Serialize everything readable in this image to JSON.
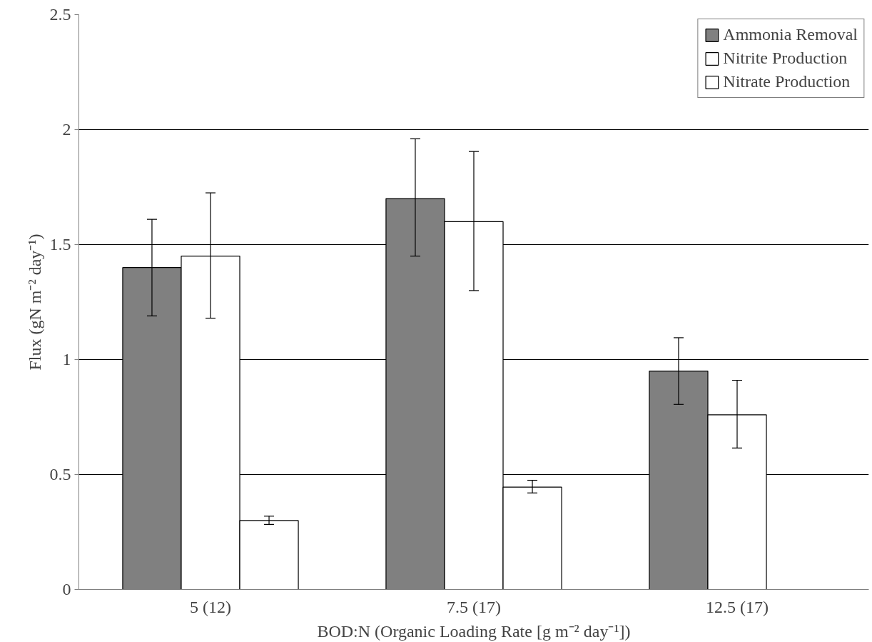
{
  "chart_data": {
    "type": "bar",
    "categories": [
      "5 (12)",
      "7.5 (17)",
      "12.5 (17)"
    ],
    "xlabel": "BOD:N (Organic Loading Rate [g m⁻² day⁻¹])",
    "ylabel": "Flux (gN m⁻² day⁻¹)",
    "series": [
      {
        "name": "Ammonia Removal",
        "color": "#808080",
        "values": [
          1.4,
          1.7,
          0.95
        ],
        "errors": [
          [
            1.19,
            1.61
          ],
          [
            1.45,
            1.96
          ],
          [
            0.805,
            1.095
          ]
        ]
      },
      {
        "name": "Nitrite Production",
        "color": "#ffffff",
        "values": [
          1.45,
          1.6,
          0.76
        ],
        "errors": [
          [
            1.18,
            1.725
          ],
          [
            1.3,
            1.905
          ],
          [
            0.615,
            0.91
          ]
        ]
      },
      {
        "name": "Nitrate Production",
        "color": "#ffffff",
        "values": [
          0.3,
          0.445,
          0
        ],
        "errors": [
          [
            0.283,
            0.319
          ],
          [
            0.42,
            0.475
          ],
          null
        ]
      }
    ],
    "ylim": [
      0,
      2.5
    ],
    "yticks": [
      0,
      0.5,
      1,
      1.5,
      2,
      2.5
    ],
    "grid": "y",
    "legend": "top right"
  }
}
